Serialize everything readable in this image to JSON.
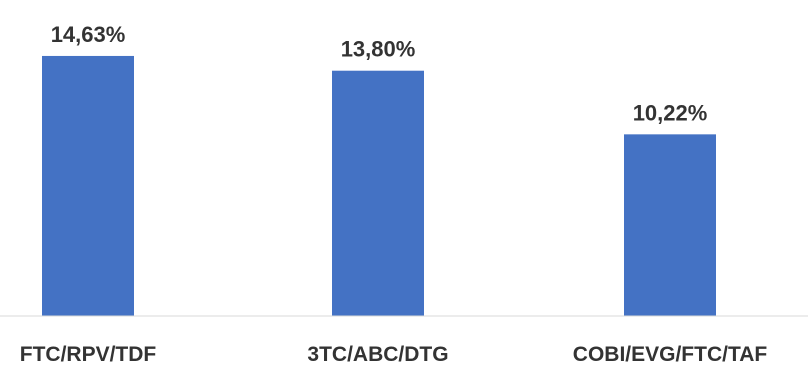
{
  "chart_data": {
    "type": "bar",
    "categories": [
      "FTC/RPV/TDF",
      "3TC/ABC/DTG",
      "COBI/EVG/FTC/TAF"
    ],
    "values": [
      14.63,
      13.8,
      10.22
    ],
    "value_labels": [
      "14,63%",
      "13,80%",
      "10,22%"
    ],
    "title": "",
    "xlabel": "",
    "ylabel": "",
    "ylim": [
      0,
      16
    ],
    "grid": false,
    "bar_color": "#4472c4",
    "axis_color": "#d9d9d9"
  }
}
